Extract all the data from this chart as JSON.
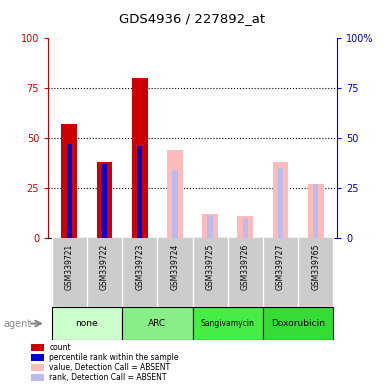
{
  "title": "GDS4936 / 227892_at",
  "samples": [
    "GSM339721",
    "GSM339722",
    "GSM339723",
    "GSM339724",
    "GSM339725",
    "GSM339726",
    "GSM339727",
    "GSM339765"
  ],
  "groups": [
    {
      "label": "none",
      "color": "#ccffcc",
      "samples": [
        0,
        1
      ]
    },
    {
      "label": "ARC",
      "color": "#88ee88",
      "samples": [
        2,
        3
      ]
    },
    {
      "label": "Sangivamycin",
      "color": "#44ee44",
      "samples": [
        4,
        5
      ]
    },
    {
      "label": "Doxorubicin",
      "color": "#33dd33",
      "samples": [
        6,
        7
      ]
    }
  ],
  "count": [
    57,
    38,
    80,
    0,
    0,
    0,
    0,
    0
  ],
  "percentile_rank": [
    47,
    37,
    46,
    0,
    0,
    0,
    0,
    0
  ],
  "absent_value": [
    0,
    0,
    0,
    44,
    12,
    11,
    38,
    27
  ],
  "absent_rank": [
    0,
    0,
    0,
    34,
    11,
    10,
    35,
    27
  ],
  "legend_items": [
    {
      "label": "count",
      "color": "#cc0000"
    },
    {
      "label": "percentile rank within the sample",
      "color": "#0000cc"
    },
    {
      "label": "value, Detection Call = ABSENT",
      "color": "#ffbbbb"
    },
    {
      "label": "rank, Detection Call = ABSENT",
      "color": "#bbbbee"
    }
  ],
  "left_axis_color": "#cc0000",
  "right_axis_color": "#0000cc",
  "background_color": "#ffffff"
}
